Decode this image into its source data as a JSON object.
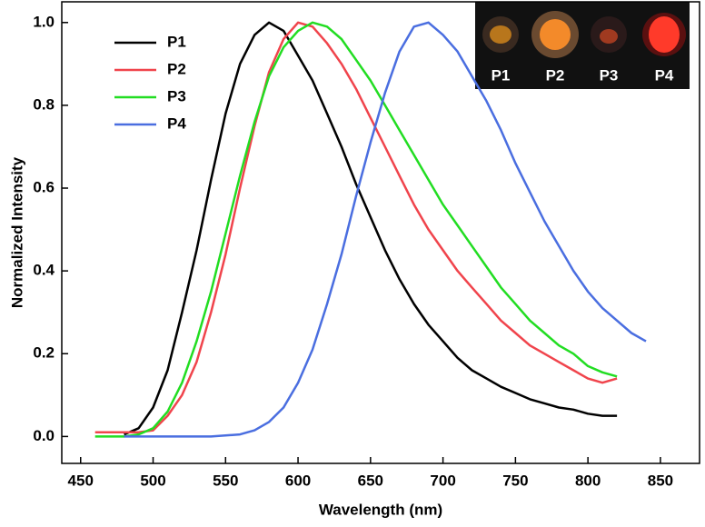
{
  "chart_data": {
    "type": "line",
    "xlabel": "Wavelength (nm)",
    "ylabel": "Normalized Intensity",
    "xlim": [
      437,
      877
    ],
    "ylim": [
      -0.065,
      1.05
    ],
    "xticks": [
      450,
      500,
      550,
      600,
      650,
      700,
      750,
      800,
      850
    ],
    "yticks": [
      {
        "value": 0,
        "label": "0.0"
      },
      {
        "value": 0.2,
        "label": "0.2"
      },
      {
        "value": 0.4,
        "label": "0.4"
      },
      {
        "value": 0.6,
        "label": "0.6"
      },
      {
        "value": 0.8,
        "label": "0.8"
      },
      {
        "value": 1,
        "label": "1.0"
      }
    ],
    "legend": "upper left",
    "inset_labels": [
      "P1",
      "P2",
      "P3",
      "P4"
    ],
    "series": [
      {
        "name": "P1",
        "color": "#000000",
        "x": [
          480,
          490,
          500,
          510,
          520,
          530,
          540,
          550,
          560,
          570,
          580,
          590,
          600,
          610,
          620,
          630,
          640,
          650,
          660,
          670,
          680,
          690,
          700,
          710,
          720,
          730,
          740,
          750,
          760,
          770,
          780,
          790,
          800,
          810,
          820
        ],
        "values": [
          0.005,
          0.02,
          0.07,
          0.16,
          0.3,
          0.45,
          0.62,
          0.78,
          0.9,
          0.97,
          1.0,
          0.98,
          0.92,
          0.86,
          0.78,
          0.7,
          0.61,
          0.53,
          0.45,
          0.38,
          0.32,
          0.27,
          0.23,
          0.19,
          0.16,
          0.14,
          0.12,
          0.105,
          0.09,
          0.08,
          0.07,
          0.065,
          0.055,
          0.05,
          0.05
        ]
      },
      {
        "name": "P2",
        "color": "#f0444c",
        "x": [
          460,
          470,
          480,
          490,
          500,
          510,
          520,
          530,
          540,
          550,
          560,
          570,
          580,
          590,
          600,
          610,
          620,
          630,
          640,
          650,
          660,
          670,
          680,
          690,
          700,
          710,
          720,
          730,
          740,
          750,
          760,
          770,
          780,
          790,
          800,
          810,
          820
        ],
        "values": [
          0.01,
          0.01,
          0.01,
          0.01,
          0.015,
          0.05,
          0.1,
          0.18,
          0.3,
          0.44,
          0.6,
          0.75,
          0.88,
          0.96,
          1.0,
          0.99,
          0.95,
          0.9,
          0.84,
          0.77,
          0.7,
          0.63,
          0.56,
          0.5,
          0.45,
          0.4,
          0.36,
          0.32,
          0.28,
          0.25,
          0.22,
          0.2,
          0.18,
          0.16,
          0.14,
          0.13,
          0.14
        ]
      },
      {
        "name": "P3",
        "color": "#22dd22",
        "x": [
          460,
          470,
          480,
          490,
          500,
          510,
          520,
          530,
          540,
          550,
          560,
          570,
          580,
          590,
          600,
          610,
          620,
          630,
          640,
          650,
          660,
          670,
          680,
          690,
          700,
          710,
          720,
          730,
          740,
          750,
          760,
          770,
          780,
          790,
          800,
          810,
          820
        ],
        "values": [
          0.0,
          0.0,
          0.0,
          0.005,
          0.02,
          0.06,
          0.13,
          0.23,
          0.35,
          0.49,
          0.63,
          0.76,
          0.87,
          0.94,
          0.98,
          1.0,
          0.99,
          0.96,
          0.91,
          0.86,
          0.8,
          0.74,
          0.68,
          0.62,
          0.56,
          0.51,
          0.46,
          0.41,
          0.36,
          0.32,
          0.28,
          0.25,
          0.22,
          0.2,
          0.17,
          0.155,
          0.145
        ]
      },
      {
        "name": "P4",
        "color": "#4a6ee0",
        "x": [
          480,
          500,
          520,
          540,
          560,
          570,
          580,
          590,
          600,
          610,
          620,
          630,
          640,
          650,
          660,
          670,
          680,
          690,
          700,
          710,
          720,
          730,
          740,
          750,
          760,
          770,
          780,
          790,
          800,
          810,
          820,
          830,
          840
        ],
        "values": [
          0.0,
          0.0,
          0.0,
          0.0,
          0.005,
          0.015,
          0.035,
          0.07,
          0.13,
          0.21,
          0.32,
          0.44,
          0.58,
          0.71,
          0.83,
          0.93,
          0.99,
          1.0,
          0.97,
          0.93,
          0.87,
          0.81,
          0.74,
          0.66,
          0.59,
          0.52,
          0.46,
          0.4,
          0.35,
          0.31,
          0.28,
          0.25,
          0.23
        ]
      }
    ]
  }
}
